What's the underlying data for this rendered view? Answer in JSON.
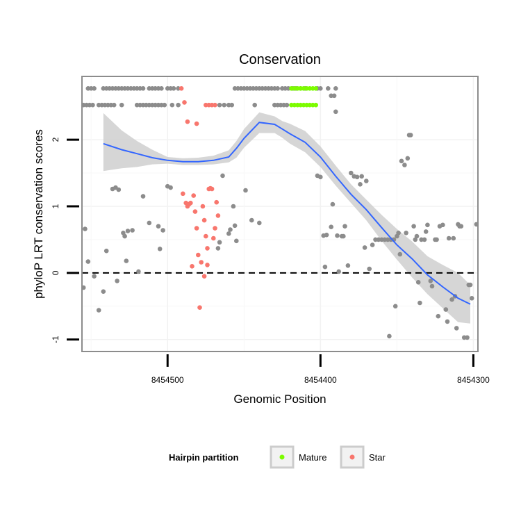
{
  "chart_data": {
    "type": "scatter",
    "title": "Conservation",
    "xlabel": "Genomic Position",
    "ylabel": "phyloP LRT conservation scores",
    "xlim": [
      8454556,
      8454297
    ],
    "x_reversed": true,
    "ylim": [
      -1.18,
      2.95
    ],
    "x_ticks": [
      8454500,
      8454400,
      8454300
    ],
    "x_tick_labels": [
      "8454500",
      "8454400",
      "8454300"
    ],
    "y_ticks": [
      -1,
      0,
      1,
      2
    ],
    "y_tick_labels": [
      "-1",
      "0",
      "1",
      "2"
    ],
    "reference_line": {
      "y": 0,
      "style": "dashed"
    },
    "grid": true,
    "colors": {
      "other": "#8c8c8c",
      "mature": "#7cfc00",
      "star": "#f8766d",
      "smooth": "#3366ff",
      "ribbon": "#cccccc",
      "panel_border": "#8c8c8c"
    },
    "legend": {
      "title": "Hairpin partition",
      "position": "bottom",
      "entries": [
        {
          "label": "Mature",
          "key": "mature"
        },
        {
          "label": "Star",
          "key": "star"
        }
      ]
    },
    "series": [
      {
        "name": "Other",
        "key": "other",
        "points": [
          [
            8454552,
            2.77
          ],
          [
            8454550,
            2.77
          ],
          [
            8454548,
            2.77
          ],
          [
            8454542,
            2.77
          ],
          [
            8454540,
            2.77
          ],
          [
            8454538,
            2.77
          ],
          [
            8454536,
            2.77
          ],
          [
            8454534,
            2.77
          ],
          [
            8454532,
            2.77
          ],
          [
            8454530,
            2.77
          ],
          [
            8454528,
            2.77
          ],
          [
            8454526,
            2.77
          ],
          [
            8454524,
            2.77
          ],
          [
            8454522,
            2.77
          ],
          [
            8454520,
            2.77
          ],
          [
            8454518,
            2.77
          ],
          [
            8454516,
            2.77
          ],
          [
            8454512,
            2.77
          ],
          [
            8454510,
            2.77
          ],
          [
            8454508,
            2.77
          ],
          [
            8454506,
            2.77
          ],
          [
            8454504,
            2.77
          ],
          [
            8454500,
            2.77
          ],
          [
            8454498,
            2.77
          ],
          [
            8454496,
            2.77
          ],
          [
            8454493,
            2.77
          ],
          [
            8454456,
            2.77
          ],
          [
            8454454,
            2.77
          ],
          [
            8454452,
            2.77
          ],
          [
            8454450,
            2.77
          ],
          [
            8454448,
            2.77
          ],
          [
            8454446,
            2.77
          ],
          [
            8454444,
            2.77
          ],
          [
            8454442,
            2.77
          ],
          [
            8454440,
            2.77
          ],
          [
            8454438,
            2.77
          ],
          [
            8454436,
            2.77
          ],
          [
            8454434,
            2.77
          ],
          [
            8454432,
            2.77
          ],
          [
            8454430,
            2.77
          ],
          [
            8454428,
            2.77
          ],
          [
            8454425,
            2.77
          ],
          [
            8454423,
            2.77
          ],
          [
            8454421,
            2.77
          ],
          [
            8454418,
            2.77
          ],
          [
            8454416,
            2.77
          ],
          [
            8454413,
            2.77
          ],
          [
            8454410,
            2.77
          ],
          [
            8454402,
            2.77
          ],
          [
            8454400,
            2.77
          ],
          [
            8454395,
            2.77
          ],
          [
            8454390,
            2.77
          ],
          [
            8454555,
            2.52
          ],
          [
            8454553,
            2.52
          ],
          [
            8454551,
            2.52
          ],
          [
            8454549,
            2.52
          ],
          [
            8454545,
            2.52
          ],
          [
            8454543,
            2.52
          ],
          [
            8454541,
            2.52
          ],
          [
            8454539,
            2.52
          ],
          [
            8454537,
            2.52
          ],
          [
            8454535,
            2.52
          ],
          [
            8454530,
            2.52
          ],
          [
            8454520,
            2.52
          ],
          [
            8454518,
            2.52
          ],
          [
            8454516,
            2.52
          ],
          [
            8454514,
            2.52
          ],
          [
            8454512,
            2.52
          ],
          [
            8454510,
            2.52
          ],
          [
            8454508,
            2.52
          ],
          [
            8454506,
            2.52
          ],
          [
            8454504,
            2.52
          ],
          [
            8454502,
            2.52
          ],
          [
            8454497,
            2.52
          ],
          [
            8454493,
            2.52
          ],
          [
            8454466,
            2.52
          ],
          [
            8454463,
            2.52
          ],
          [
            8454460,
            2.52
          ],
          [
            8454458,
            2.52
          ],
          [
            8454443,
            2.52
          ],
          [
            8454430,
            2.52
          ],
          [
            8454428,
            2.52
          ],
          [
            8454426,
            2.52
          ],
          [
            8454424,
            2.52
          ],
          [
            8454422,
            2.52
          ],
          [
            8454393,
            2.66
          ],
          [
            8454391,
            2.66
          ],
          [
            8454390,
            2.42
          ],
          [
            8454555,
            -0.22
          ],
          [
            8454554,
            0.66
          ],
          [
            8454552,
            0.17
          ],
          [
            8454548,
            -0.05
          ],
          [
            8454545,
            -0.56
          ],
          [
            8454542,
            -0.28
          ],
          [
            8454540,
            0.33
          ],
          [
            8454536,
            1.26
          ],
          [
            8454534,
            1.28
          ],
          [
            8454533,
            -0.12
          ],
          [
            8454532,
            1.25
          ],
          [
            8454529,
            0.6
          ],
          [
            8454528,
            0.55
          ],
          [
            8454527,
            0.18
          ],
          [
            8454526,
            0.63
          ],
          [
            8454523,
            0.64
          ],
          [
            8454519,
            0.02
          ],
          [
            8454516,
            1.15
          ],
          [
            8454512,
            0.75
          ],
          [
            8454506,
            0.7
          ],
          [
            8454505,
            0.36
          ],
          [
            8454503,
            0.64
          ],
          [
            8454500,
            1.3
          ],
          [
            8454498,
            1.28
          ],
          [
            8454467,
            0.37
          ],
          [
            8454466,
            0.46
          ],
          [
            8454464,
            1.46
          ],
          [
            8454460,
            0.59
          ],
          [
            8454459,
            0.65
          ],
          [
            8454457,
            1.0
          ],
          [
            8454456,
            0.71
          ],
          [
            8454455,
            0.48
          ],
          [
            8454449,
            1.24
          ],
          [
            8454445,
            0.79
          ],
          [
            8454440,
            0.75
          ],
          [
            8454402,
            1.46
          ],
          [
            8454400,
            1.44
          ],
          [
            8454398,
            0.56
          ],
          [
            8454397,
            0.09
          ],
          [
            8454396,
            0.57
          ],
          [
            8454393,
            0.69
          ],
          [
            8454392,
            1.03
          ],
          [
            8454389,
            0.56
          ],
          [
            8454388,
            0.02
          ],
          [
            8454386,
            0.55
          ],
          [
            8454385,
            0.55
          ],
          [
            8454384,
            0.7
          ],
          [
            8454382,
            0.11
          ],
          [
            8454380,
            1.5
          ],
          [
            8454378,
            1.45
          ],
          [
            8454376,
            1.44
          ],
          [
            8454374,
            1.33
          ],
          [
            8454373,
            1.45
          ],
          [
            8454371,
            0.38
          ],
          [
            8454370,
            1.38
          ],
          [
            8454368,
            0.06
          ],
          [
            8454366,
            0.42
          ],
          [
            8454364,
            0.5
          ],
          [
            8454362,
            0.5
          ],
          [
            8454360,
            0.5
          ],
          [
            8454358,
            0.5
          ],
          [
            8454356,
            0.5
          ],
          [
            8454355,
            -0.95
          ],
          [
            8454354,
            0.5
          ],
          [
            8454352,
            0.5
          ],
          [
            8454351,
            -0.5
          ],
          [
            8454350,
            0.55
          ],
          [
            8454349,
            0.6
          ],
          [
            8454348,
            0.28
          ],
          [
            8454347,
            1.68
          ],
          [
            8454345,
            1.62
          ],
          [
            8454344,
            0.6
          ],
          [
            8454343,
            1.72
          ],
          [
            8454342,
            2.07
          ],
          [
            8454341,
            2.07
          ],
          [
            8454339,
            0.7
          ],
          [
            8454338,
            0.5
          ],
          [
            8454337,
            0.55
          ],
          [
            8454336,
            -0.14
          ],
          [
            8454335,
            -0.45
          ],
          [
            8454334,
            0.5
          ],
          [
            8454332,
            0.5
          ],
          [
            8454331,
            0.62
          ],
          [
            8454330,
            0.72
          ],
          [
            8454328,
            -0.12
          ],
          [
            8454327,
            -0.2
          ],
          [
            8454325,
            0.5
          ],
          [
            8454324,
            0.5
          ],
          [
            8454323,
            -0.65
          ],
          [
            8454322,
            0.7
          ],
          [
            8454320,
            0.72
          ],
          [
            8454318,
            -0.55
          ],
          [
            8454317,
            -0.73
          ],
          [
            8454316,
            0.52
          ],
          [
            8454314,
            -0.4
          ],
          [
            8454313,
            0.52
          ],
          [
            8454312,
            -0.35
          ],
          [
            8454311,
            -0.83
          ],
          [
            8454310,
            0.73
          ],
          [
            8454309,
            0.7
          ],
          [
            8454308,
            0.7
          ],
          [
            8454306,
            -0.97
          ],
          [
            8454304,
            -0.97
          ],
          [
            8454303,
            -0.18
          ],
          [
            8454302,
            -0.18
          ],
          [
            8454301,
            -0.38
          ],
          [
            8454298,
            0.73
          ]
        ]
      },
      {
        "name": "Mature",
        "key": "mature",
        "points": [
          [
            8454419,
            2.77
          ],
          [
            8454417,
            2.77
          ],
          [
            8454415,
            2.77
          ],
          [
            8454413,
            2.77
          ],
          [
            8454411,
            2.77
          ],
          [
            8454409,
            2.77
          ],
          [
            8454407,
            2.77
          ],
          [
            8454405,
            2.77
          ],
          [
            8454403,
            2.77
          ],
          [
            8454419,
            2.52
          ],
          [
            8454417,
            2.52
          ],
          [
            8454415,
            2.52
          ],
          [
            8454413,
            2.52
          ],
          [
            8454411,
            2.52
          ],
          [
            8454409,
            2.52
          ],
          [
            8454407,
            2.52
          ],
          [
            8454405,
            2.52
          ],
          [
            8454403,
            2.52
          ]
        ]
      },
      {
        "name": "Star",
        "key": "star",
        "points": [
          [
            8454491,
            2.77
          ],
          [
            8454489,
            2.56
          ],
          [
            8454487,
            2.27
          ],
          [
            8454481,
            2.24
          ],
          [
            8454475,
            2.52
          ],
          [
            8454473,
            2.52
          ],
          [
            8454471,
            2.52
          ],
          [
            8454469,
            2.52
          ],
          [
            8454490,
            1.19
          ],
          [
            8454488,
            1.05
          ],
          [
            8454487,
            1.0
          ],
          [
            8454486,
            1.03
          ],
          [
            8454485,
            1.05
          ],
          [
            8454483,
            1.16
          ],
          [
            8454482,
            0.92
          ],
          [
            8454481,
            0.67
          ],
          [
            8454480,
            0.27
          ],
          [
            8454479,
            -0.52
          ],
          [
            8454478,
            0.16
          ],
          [
            8454477,
            1.0
          ],
          [
            8454476,
            0.79
          ],
          [
            8454475,
            0.55
          ],
          [
            8454474,
            0.37
          ],
          [
            8454473,
            1.26
          ],
          [
            8454472,
            1.27
          ],
          [
            8454471,
            1.26
          ],
          [
            8454470,
            0.52
          ],
          [
            8454469,
            0.67
          ],
          [
            8454468,
            1.06
          ],
          [
            8454467,
            0.86
          ],
          [
            8454484,
            0.1
          ],
          [
            8454476,
            -0.05
          ],
          [
            8454474,
            0.12
          ]
        ]
      }
    ],
    "smooth_curve": {
      "x": [
        8454542,
        8454530,
        8454520,
        8454510,
        8454500,
        8454490,
        8454480,
        8454470,
        8454460,
        8454455,
        8454450,
        8454440,
        8454430,
        8454425,
        8454420,
        8454410,
        8454400,
        8454390,
        8454380,
        8454370,
        8454360,
        8454350,
        8454340,
        8454330,
        8454320,
        8454310,
        8454302
      ],
      "y": [
        1.94,
        1.85,
        1.79,
        1.73,
        1.69,
        1.67,
        1.67,
        1.69,
        1.74,
        1.87,
        2.02,
        2.26,
        2.23,
        2.16,
        2.09,
        1.96,
        1.74,
        1.45,
        1.18,
        0.95,
        0.68,
        0.42,
        0.21,
        -0.03,
        -0.21,
        -0.38,
        -0.47
      ],
      "lower": [
        1.53,
        1.57,
        1.59,
        1.63,
        1.64,
        1.62,
        1.62,
        1.63,
        1.66,
        1.73,
        1.88,
        2.1,
        2.1,
        2.03,
        1.94,
        1.81,
        1.59,
        1.31,
        1.05,
        0.79,
        0.48,
        0.2,
        -0.07,
        -0.32,
        -0.53,
        -0.74,
        -0.76
      ],
      "upper": [
        2.4,
        2.14,
        1.98,
        1.85,
        1.74,
        1.72,
        1.73,
        1.76,
        1.84,
        1.98,
        2.16,
        2.41,
        2.35,
        2.28,
        2.24,
        2.13,
        1.9,
        1.61,
        1.33,
        1.1,
        0.87,
        0.66,
        0.47,
        0.25,
        0.12,
        0.0,
        -0.18
      ]
    }
  }
}
